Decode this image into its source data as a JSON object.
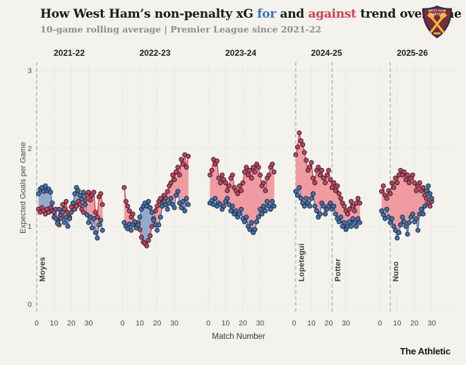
{
  "header": {
    "title_prefix": "How West Ham’s non-penalty xG",
    "title_for": "for",
    "title_mid": "and",
    "title_against": "against",
    "title_suffix": "trend over time",
    "subtitle": "10-game rolling average | Premier League since 2021-22",
    "accent_for": "#3e6fb3",
    "accent_against": "#d2414e"
  },
  "badge": {
    "name": "west-ham-crest",
    "line1": "WEST HAM",
    "line2": "UNITED",
    "shield_color": "#7a2b3d",
    "border_color": "#1f2d4e",
    "hammer_color": "#f2b736"
  },
  "footer": {
    "brand": "The Athletic"
  },
  "chart_data": {
    "type": "area",
    "title": "How West Ham's non-penalty xG for and against trend over time",
    "subtitle": "10-game rolling average | Premier League since 2021-22",
    "xlabel": "Match Number",
    "ylabel": "Expected Goals per Game",
    "ylim": [
      0,
      3
    ],
    "yticks": [
      0,
      1,
      2,
      3
    ],
    "xticks": [
      0,
      10,
      20,
      30
    ],
    "grid": "dotted",
    "legend": "inline-in-title",
    "colors": {
      "for": "#4273ad",
      "against": "#cf4150",
      "for_area": "#92a9cd",
      "against_area": "#f09aa0",
      "point_outline": "#232a40",
      "manager_line": "#a09f98",
      "background": "#f3f2ec"
    },
    "panels": [
      {
        "season": "2021-22",
        "managers": [
          {
            "name": "Moyes",
            "match": 0
          }
        ],
        "for": [
          1.42,
          1.48,
          1.5,
          1.45,
          1.52,
          1.46,
          1.48,
          1.44,
          1.3,
          1.18,
          1.1,
          1.04,
          1.22,
          1.1,
          1.18,
          1.05,
          1.12,
          1.0,
          1.1,
          1.18,
          1.3,
          1.42,
          1.5,
          1.46,
          1.4,
          1.35,
          1.44,
          1.28,
          1.15,
          1.05,
          1.12,
          0.98,
          1.1,
          0.92,
          0.85,
          1.02,
          1.08,
          0.95
        ],
        "against": [
          1.22,
          1.18,
          1.24,
          1.2,
          1.16,
          1.22,
          1.18,
          1.24,
          1.2,
          1.12,
          1.22,
          1.08,
          1.02,
          1.15,
          1.28,
          1.22,
          1.32,
          1.18,
          1.12,
          1.25,
          1.3,
          1.22,
          1.26,
          1.32,
          1.28,
          1.22,
          1.18,
          1.34,
          1.4,
          1.44,
          1.34,
          1.4,
          1.44,
          1.18,
          1.12,
          1.38,
          1.42,
          1.28
        ]
      },
      {
        "season": "2022-23",
        "managers": [],
        "for": [
          1.05,
          1.0,
          0.97,
          1.03,
          0.95,
          1.02,
          1.06,
          0.98,
          1.02,
          1.12,
          1.22,
          1.26,
          1.3,
          1.26,
          1.32,
          1.24,
          1.18,
          1.08,
          1.02,
          0.95,
          1.02,
          1.12,
          1.26,
          1.32,
          1.28,
          1.22,
          1.3,
          1.36,
          1.28,
          1.24,
          1.4,
          1.45,
          1.3,
          1.24,
          1.32,
          1.2,
          1.36,
          1.28
        ],
        "against": [
          1.5,
          1.32,
          1.26,
          1.2,
          1.12,
          1.16,
          1.06,
          1.0,
          1.05,
          0.96,
          0.86,
          0.8,
          0.78,
          0.75,
          0.82,
          0.88,
          1.0,
          1.1,
          1.2,
          1.26,
          1.32,
          1.36,
          1.3,
          1.4,
          1.36,
          1.45,
          1.52,
          1.56,
          1.66,
          1.6,
          1.7,
          1.76,
          1.66,
          1.86,
          1.8,
          1.92,
          1.76,
          1.9
        ]
      },
      {
        "season": "2023-24",
        "managers": [],
        "for": [
          1.3,
          1.33,
          1.28,
          1.36,
          1.26,
          1.3,
          1.28,
          1.22,
          1.26,
          1.32,
          1.36,
          1.28,
          1.2,
          1.26,
          1.16,
          1.2,
          1.12,
          1.16,
          1.22,
          1.1,
          1.06,
          1.12,
          1.0,
          0.96,
          1.05,
          0.92,
          0.96,
          1.06,
          1.12,
          1.22,
          1.16,
          1.26,
          1.2,
          1.32,
          1.26,
          1.22,
          1.32,
          1.26
        ],
        "against": [
          1.66,
          1.72,
          1.86,
          1.8,
          1.84,
          1.62,
          1.56,
          1.66,
          1.6,
          1.56,
          1.46,
          1.52,
          1.62,
          1.66,
          1.5,
          1.46,
          1.42,
          1.52,
          1.46,
          1.56,
          1.7,
          1.76,
          1.66,
          1.72,
          1.62,
          1.76,
          1.7,
          1.8,
          1.76,
          1.66,
          1.52,
          1.56,
          1.46,
          1.62,
          1.66,
          1.76,
          1.8,
          1.7
        ]
      },
      {
        "season": "2024-25",
        "managers": [
          {
            "name": "Lopetegui",
            "match": 1
          },
          {
            "name": "Potter",
            "match": 22
          }
        ],
        "for": [
          1.45,
          1.4,
          1.5,
          1.36,
          1.3,
          1.26,
          1.36,
          1.3,
          1.26,
          1.36,
          1.42,
          1.26,
          1.2,
          1.12,
          1.16,
          1.3,
          1.26,
          1.16,
          1.22,
          1.26,
          1.3,
          1.22,
          1.26,
          1.16,
          1.1,
          1.06,
          1.12,
          1.0,
          1.05,
          0.96,
          1.0,
          1.06,
          1.0,
          1.1,
          1.05,
          1.0,
          1.1,
          1.05
        ],
        "against": [
          1.92,
          2.02,
          2.2,
          2.1,
          2.05,
          1.95,
          1.85,
          1.72,
          1.76,
          1.82,
          1.62,
          1.56,
          1.72,
          1.76,
          1.66,
          1.72,
          1.62,
          1.56,
          1.66,
          1.72,
          1.6,
          1.5,
          1.56,
          1.46,
          1.52,
          1.42,
          1.36,
          1.3,
          1.26,
          1.2,
          1.16,
          1.22,
          1.32,
          1.26,
          1.2,
          1.3,
          1.36,
          1.3
        ]
      },
      {
        "season": "2025-26",
        "managers": [
          {
            "name": "Nuno",
            "match": 6
          }
        ],
        "for": [
          1.2,
          1.15,
          1.1,
          1.22,
          1.12,
          1.05,
          1.1,
          1.0,
          0.95,
          0.85,
          0.92,
          1.02,
          1.12,
          1.06,
          1.0,
          0.9,
          1.05,
          1.12,
          1.16,
          1.06,
          1.1,
          0.95,
          1.16,
          1.22,
          1.16,
          1.26,
          1.46,
          1.52,
          1.42,
          1.36
        ],
        "against": [
          1.45,
          1.52,
          1.4,
          1.36,
          1.46,
          1.42,
          1.56,
          1.5,
          1.62,
          1.56,
          1.66,
          1.72,
          1.66,
          1.7,
          1.6,
          1.66,
          1.56,
          1.62,
          1.66,
          1.56,
          1.46,
          1.52,
          1.56,
          1.46,
          1.5,
          1.4,
          1.36,
          1.3,
          1.26,
          1.32
        ]
      }
    ]
  }
}
